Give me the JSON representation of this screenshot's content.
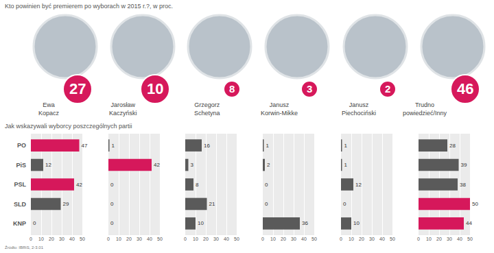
{
  "title": "Kto powinien być premierem po wyborach w 2015 r.?, w proc.",
  "subtitle": "Jak wskazywali wyborcy poszczególnych partii",
  "source": "Źródło: IBRiS, 2-3.01",
  "chart_data": [
    {
      "type": "bar",
      "orientation": "horizontal",
      "title": "Ewa Kopacz",
      "share": 27,
      "categories": [
        "PO",
        "PiS",
        "PSL",
        "SLD",
        "KNP"
      ],
      "values": [
        47,
        12,
        42,
        29,
        0
      ],
      "colors": [
        "#d6185b",
        "#5a5a5a",
        "#d6185b",
        "#5a5a5a",
        "#5a5a5a"
      ],
      "xlim": [
        0,
        50
      ],
      "xticks": [
        0,
        10,
        20,
        30,
        40,
        50
      ],
      "grid": true,
      "data_labels": true
    },
    {
      "type": "bar",
      "orientation": "horizontal",
      "title": "Jarosław Kaczyński",
      "share": 10,
      "categories": [
        "PO",
        "PiS",
        "PSL",
        "SLD",
        "KNP"
      ],
      "values": [
        1,
        42,
        0,
        0,
        0
      ],
      "colors": [
        "#5a5a5a",
        "#d6185b",
        "#5a5a5a",
        "#5a5a5a",
        "#5a5a5a"
      ],
      "xlim": [
        0,
        50
      ],
      "xticks": [
        0,
        10,
        20,
        30,
        40,
        50
      ],
      "grid": true,
      "data_labels": true,
      "tick_labels": "x"
    },
    {
      "type": "bar",
      "orientation": "horizontal",
      "title": "Grzegorz Schetyna",
      "share": 8,
      "categories": [
        "PO",
        "PiS",
        "PSL",
        "SLD",
        "KNP"
      ],
      "values": [
        16,
        3,
        8,
        21,
        10
      ],
      "colors": [
        "#5a5a5a",
        "#5a5a5a",
        "#5a5a5a",
        "#5a5a5a",
        "#5a5a5a"
      ],
      "xlim": [
        0,
        50
      ],
      "xticks": [
        0,
        10,
        20,
        30,
        40,
        50
      ],
      "grid": true,
      "data_labels": true,
      "tick_labels": "x"
    },
    {
      "type": "bar",
      "orientation": "horizontal",
      "title": "Janusz Korwin-Mikke",
      "share": 3,
      "categories": [
        "PO",
        "PiS",
        "PSL",
        "SLD",
        "KNP"
      ],
      "values": [
        1,
        2,
        0,
        0,
        36
      ],
      "colors": [
        "#5a5a5a",
        "#5a5a5a",
        "#5a5a5a",
        "#5a5a5a",
        "#5a5a5a"
      ],
      "xlim": [
        0,
        50
      ],
      "xticks": [
        0,
        10,
        20,
        30,
        40,
        50
      ],
      "grid": true,
      "data_labels": true,
      "tick_labels": "x"
    },
    {
      "type": "bar",
      "orientation": "horizontal",
      "title": "Janusz Piechociński",
      "share": 2,
      "categories": [
        "PO",
        "PiS",
        "PSL",
        "SLD",
        "KNP"
      ],
      "values": [
        1,
        1,
        12,
        0,
        10
      ],
      "colors": [
        "#5a5a5a",
        "#5a5a5a",
        "#5a5a5a",
        "#5a5a5a",
        "#5a5a5a"
      ],
      "xlim": [
        0,
        50
      ],
      "xticks": [
        0,
        10,
        20,
        30,
        40,
        50
      ],
      "grid": true,
      "data_labels": true,
      "tick_labels": "x"
    },
    {
      "type": "bar",
      "orientation": "horizontal",
      "title": "Trudno powiedzieć/Inny",
      "share": 46,
      "categories": [
        "PO",
        "PiS",
        "PSL",
        "SLD",
        "KNP"
      ],
      "values": [
        28,
        39,
        38,
        50,
        44
      ],
      "colors": [
        "#5a5a5a",
        "#5a5a5a",
        "#5a5a5a",
        "#d6185b",
        "#d6185b"
      ],
      "xlim": [
        0,
        50
      ],
      "xticks": [
        0,
        10,
        20,
        30,
        40,
        50
      ],
      "grid": true,
      "data_labels": true,
      "tick_labels": "x"
    }
  ]
}
